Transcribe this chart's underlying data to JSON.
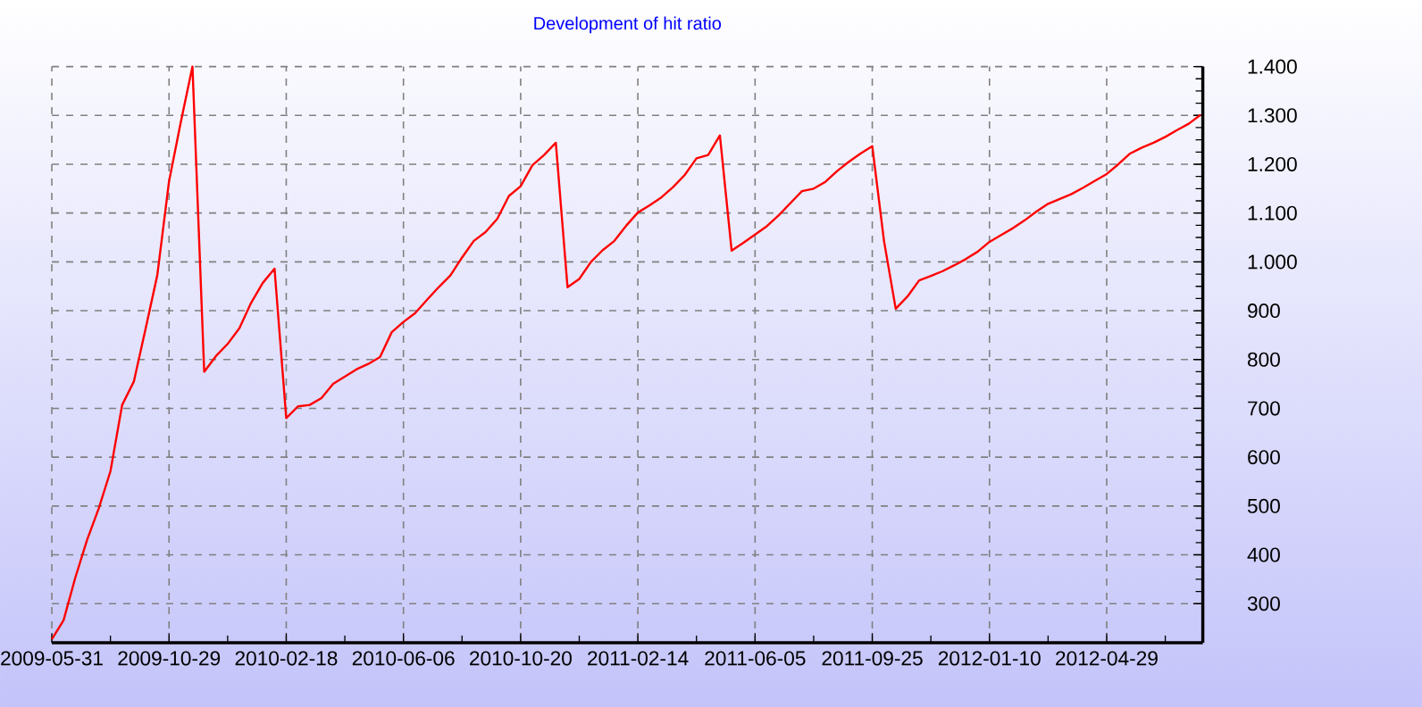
{
  "chart_data": {
    "type": "line",
    "title": "Development of hit ratio",
    "categories": [
      "2009-05-31",
      null,
      null,
      null,
      null,
      null,
      null,
      null,
      null,
      null,
      "2009-10-29",
      null,
      null,
      null,
      null,
      null,
      null,
      null,
      null,
      null,
      "2010-02-18",
      null,
      null,
      null,
      null,
      null,
      null,
      null,
      null,
      null,
      "2010-06-06",
      null,
      null,
      null,
      null,
      null,
      null,
      null,
      null,
      null,
      "2010-10-20",
      null,
      null,
      null,
      null,
      null,
      null,
      null,
      null,
      null,
      "2011-02-14",
      null,
      null,
      null,
      null,
      null,
      null,
      null,
      null,
      null,
      "2011-06-05",
      null,
      null,
      null,
      null,
      null,
      null,
      null,
      null,
      null,
      "2011-09-25",
      null,
      null,
      null,
      null,
      null,
      null,
      null,
      null,
      null,
      "2012-01-10",
      null,
      null,
      null,
      null,
      null,
      null,
      null,
      null,
      null,
      "2012-04-29",
      null,
      null,
      null,
      null,
      null,
      null,
      null,
      null
    ],
    "series": [
      {
        "color": "#ff0000",
        "values": [
          227,
          266,
          353,
          430,
          495,
          571,
          707,
          755,
          863,
          973,
          1165,
          1286,
          1400,
          775,
          807,
          832,
          864,
          916,
          957,
          986,
          680,
          704,
          707,
          721,
          750,
          765,
          780,
          791,
          805,
          856,
          877,
          895,
          922,
          948,
          972,
          1009,
          1043,
          1061,
          1088,
          1135,
          1155,
          1198,
          1219,
          1244,
          948,
          965,
          1000,
          1024,
          1043,
          1074,
          1101,
          1116,
          1132,
          1153,
          1178,
          1212,
          1219,
          1259,
          1023,
          1039,
          1056,
          1073,
          1095,
          1120,
          1145,
          1150,
          1164,
          1186,
          1205,
          1222,
          1237,
          1043,
          904,
          929,
          962,
          971,
          981,
          993,
          1006,
          1021,
          1041,
          1055,
          1069,
          1085,
          1103,
          1119,
          1129,
          1139,
          1152,
          1166,
          1180,
          1200,
          1222,
          1234,
          1244,
          1256,
          1270,
          1283,
          1301
        ]
      }
    ],
    "ylim": [
      220,
      1400
    ],
    "yticks": [
      300,
      400,
      500,
      600,
      700,
      800,
      900,
      {
        "value": 1000,
        "label": "1.000"
      },
      {
        "value": 1100,
        "label": "1.100"
      },
      {
        "value": 1200,
        "label": "1.200"
      },
      {
        "value": 1300,
        "label": "1.300"
      },
      {
        "value": 1400,
        "label": "1.400"
      }
    ],
    "grid": true
  }
}
